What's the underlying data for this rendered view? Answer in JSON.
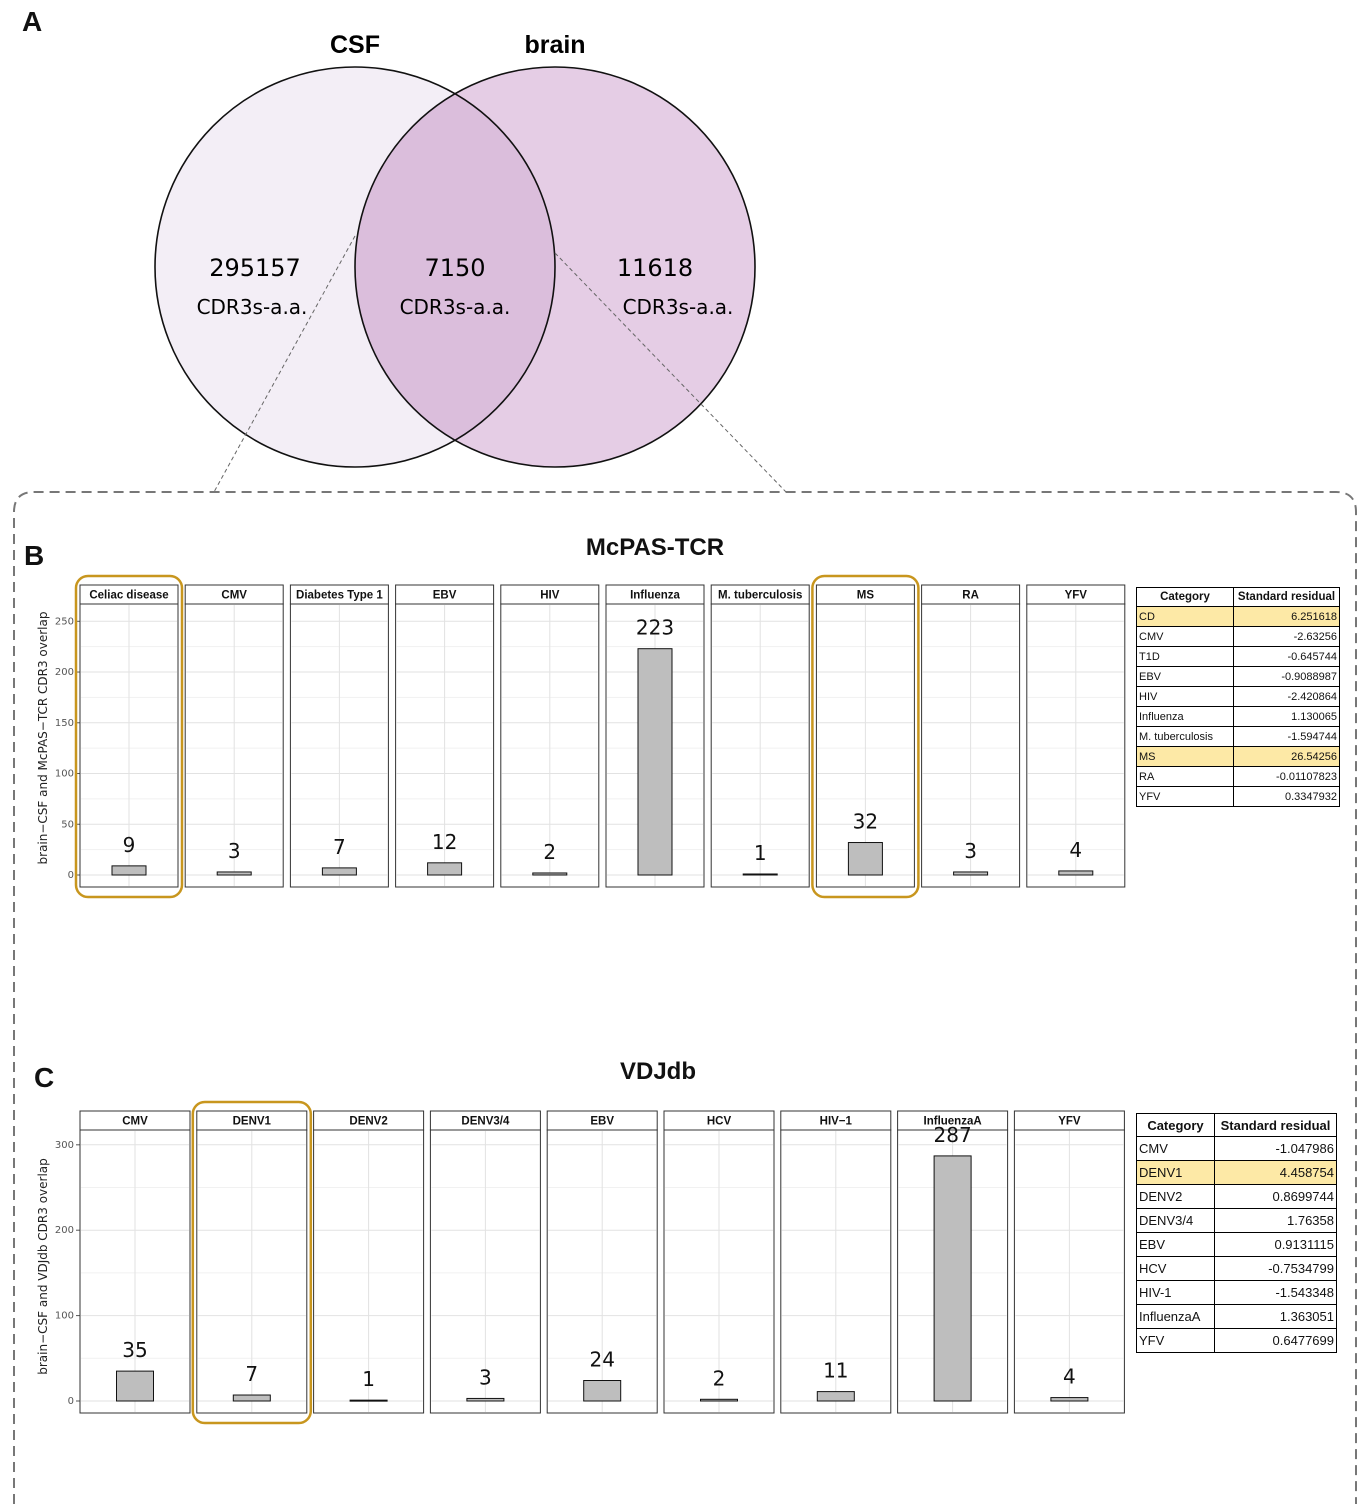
{
  "panels": {
    "a": "A",
    "b": "B",
    "c": "C"
  },
  "venn": {
    "left_label": "CSF",
    "right_label": "brain",
    "left_count": "295157",
    "overlap_count": "7150",
    "right_count": "11618",
    "unit": "CDR3s-a.a.",
    "colors": {
      "left": "#f3eef6",
      "right": "#e5cde5",
      "overlap": "#dbbedc"
    }
  },
  "chart_data": [
    {
      "type": "bar",
      "title": "McPAS-TCR",
      "ylabel": "brain−CSF and McPAS−TCR CDR3 overlap",
      "ylim": [
        0,
        270
      ],
      "yticks": [
        0,
        50,
        100,
        150,
        200,
        250
      ],
      "categories": [
        "Celiac disease",
        "CMV",
        "Diabetes Type 1",
        "EBV",
        "HIV",
        "Influenza",
        "M. tuberculosis",
        "MS",
        "RA",
        "YFV"
      ],
      "values": [
        9,
        3,
        7,
        12,
        2,
        223,
        1,
        32,
        3,
        4
      ],
      "highlighted": [
        "Celiac disease",
        "MS"
      ],
      "bar_color": "#bebebe",
      "highlight_color": "#c8961e",
      "grid": true
    },
    {
      "type": "bar",
      "title": "VDJdb",
      "ylabel": "brain−CSF and VDJdb CDR3 overlap",
      "ylim": [
        0,
        315
      ],
      "yticks": [
        0,
        100,
        200,
        300
      ],
      "categories": [
        "CMV",
        "DENV1",
        "DENV2",
        "DENV3/4",
        "EBV",
        "HCV",
        "HIV−1",
        "InfluenzaA",
        "YFV"
      ],
      "values": [
        35,
        7,
        1,
        3,
        24,
        2,
        11,
        287,
        4
      ],
      "highlighted": [
        "DENV1"
      ],
      "bar_color": "#bebebe",
      "highlight_color": "#c8961e",
      "grid": true
    }
  ],
  "tables": {
    "mcpas": {
      "headers": [
        "Category",
        "Standard residual"
      ],
      "rows": [
        [
          "CD",
          "6.251618"
        ],
        [
          "CMV",
          "-2.63256"
        ],
        [
          "T1D",
          "-0.645744"
        ],
        [
          "EBV",
          "-0.9088987"
        ],
        [
          "HIV",
          "-2.420864"
        ],
        [
          "Influenza",
          "1.130065"
        ],
        [
          "M. tuberculosis",
          "-1.594744"
        ],
        [
          "MS",
          "26.54256"
        ],
        [
          "RA",
          "-0.01107823"
        ],
        [
          "YFV",
          "0.3347932"
        ]
      ],
      "highlighted_rows": [
        "CD",
        "MS"
      ]
    },
    "vdjdb": {
      "headers": [
        "Category",
        "Standard residual"
      ],
      "rows": [
        [
          "CMV",
          "-1.047986"
        ],
        [
          "DENV1",
          "4.458754"
        ],
        [
          "DENV2",
          "0.8699744"
        ],
        [
          "DENV3/4",
          "1.76358"
        ],
        [
          "EBV",
          "0.9131115"
        ],
        [
          "HCV",
          "-0.7534799"
        ],
        [
          "HIV-1",
          "-1.543348"
        ],
        [
          "InfluenzaA",
          "1.363051"
        ],
        [
          "YFV",
          "0.6477699"
        ]
      ],
      "highlighted_rows": [
        "DENV1"
      ]
    }
  }
}
